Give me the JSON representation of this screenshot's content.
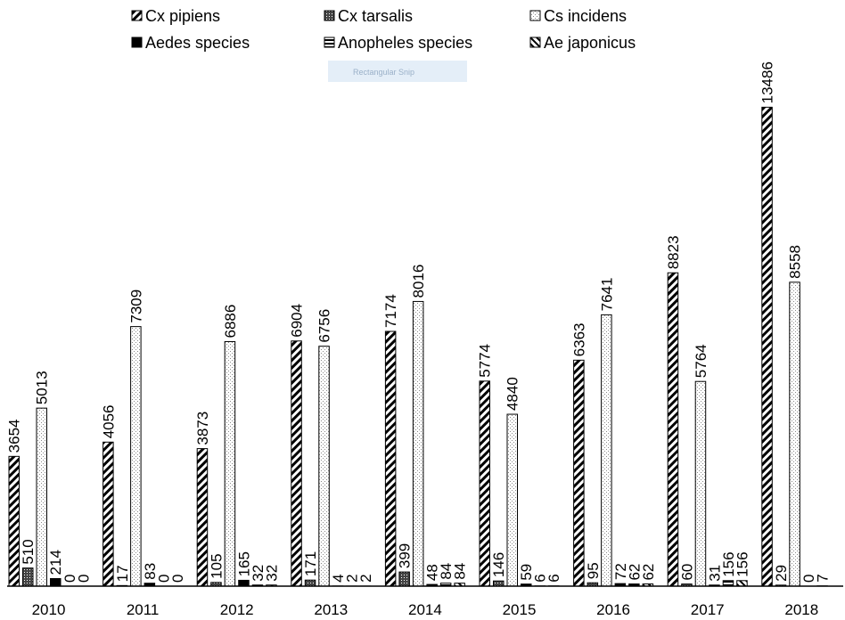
{
  "chart_data": {
    "type": "bar",
    "title": "",
    "xlabel": "",
    "ylabel": "",
    "ylim": [
      0,
      15000
    ],
    "grid": false,
    "legend_position": "top",
    "categories": [
      "2010",
      "2011",
      "2012",
      "2013",
      "2014",
      "2015",
      "2016",
      "2017",
      "2018"
    ],
    "series": [
      {
        "name": "Cx pipiens",
        "pattern": "diag-hatch",
        "values": [
          3654,
          4056,
          3873,
          6904,
          7174,
          5774,
          6363,
          8823,
          13486
        ],
        "labels": [
          "3654",
          "4056",
          "3873",
          "6904",
          "7174",
          "5774",
          "6363",
          "8823",
          "13486"
        ]
      },
      {
        "name": "Cx tarsalis",
        "pattern": "dense-check",
        "values": [
          510,
          17,
          105,
          171,
          399,
          146,
          95,
          60,
          29
        ],
        "labels": [
          "510",
          "17",
          "105",
          "171",
          "399",
          "146",
          "95",
          "60",
          "29"
        ]
      },
      {
        "name": "Cs incidens",
        "pattern": "light-dots",
        "values": [
          5013,
          7309,
          6886,
          6756,
          8016,
          4840,
          7641,
          5764,
          8558
        ],
        "labels": [
          "5013",
          "7309",
          "6886",
          "6756",
          "8016",
          "4840",
          "7641",
          "5764",
          "8558"
        ]
      },
      {
        "name": "Aedes species",
        "pattern": "solid",
        "values": [
          214,
          83,
          165,
          4,
          48,
          59,
          72,
          31,
          0
        ],
        "labels": [
          "214",
          "83",
          "165",
          "4",
          "48",
          "59",
          "72",
          "31",
          "0"
        ]
      },
      {
        "name": "Anopheles species",
        "pattern": "horiz-lines",
        "values": [
          0,
          0,
          32,
          2,
          84,
          6,
          62,
          156,
          7
        ],
        "labels": [
          "0",
          "0",
          "32",
          "2",
          "84",
          "6",
          "62",
          "156",
          "7"
        ]
      },
      {
        "name": "Ae japonicus",
        "pattern": "back-diag",
        "values": [
          0,
          0,
          32,
          2,
          84,
          6,
          62,
          156,
          null
        ],
        "labels": [
          "0",
          "0",
          "32",
          "2",
          "84",
          "6",
          "62",
          "156",
          ""
        ]
      }
    ]
  },
  "overlay": {
    "text": "Rectangular Snip"
  },
  "colors": {
    "ink": "#000000",
    "background": "#ffffff",
    "overlay": "#e4eef8"
  }
}
